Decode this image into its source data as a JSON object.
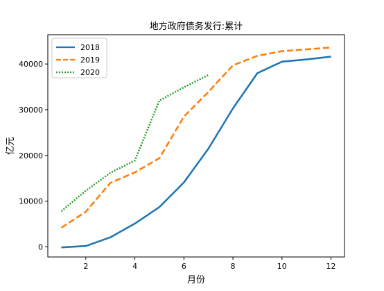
{
  "chart_data": {
    "type": "line",
    "title": "地方政府债务发行:累计",
    "xlabel": "月份",
    "ylabel": "亿元",
    "xlim": [
      0.45,
      12.55
    ],
    "ylim": [
      -2200,
      46400
    ],
    "xticks": [
      2,
      4,
      6,
      8,
      10,
      12
    ],
    "yticks": [
      0,
      10000,
      20000,
      30000,
      40000
    ],
    "grid": false,
    "legend_position": "top-left",
    "series": [
      {
        "name": "2018",
        "color": "#1f77b4",
        "style": "solid",
        "x": [
          1,
          2,
          3,
          4,
          5,
          6,
          7,
          8,
          9,
          10,
          11,
          12
        ],
        "values": [
          -100,
          200,
          2100,
          5100,
          8700,
          14100,
          21500,
          30300,
          38000,
          40500,
          41000,
          41600
        ]
      },
      {
        "name": "2019",
        "color": "#ff7f0e",
        "style": "dashed",
        "x": [
          1,
          2,
          3,
          4,
          5,
          6,
          7,
          8,
          9,
          10,
          11,
          12
        ],
        "values": [
          4200,
          7700,
          14000,
          16300,
          19400,
          28500,
          33900,
          39700,
          41800,
          42800,
          43200,
          43600
        ]
      },
      {
        "name": "2020",
        "color": "#2ca02c",
        "style": "dotted",
        "x": [
          1,
          2,
          3,
          4,
          5,
          6,
          7
        ],
        "values": [
          7800,
          12300,
          16200,
          18900,
          32000,
          34900,
          37600
        ]
      }
    ]
  }
}
